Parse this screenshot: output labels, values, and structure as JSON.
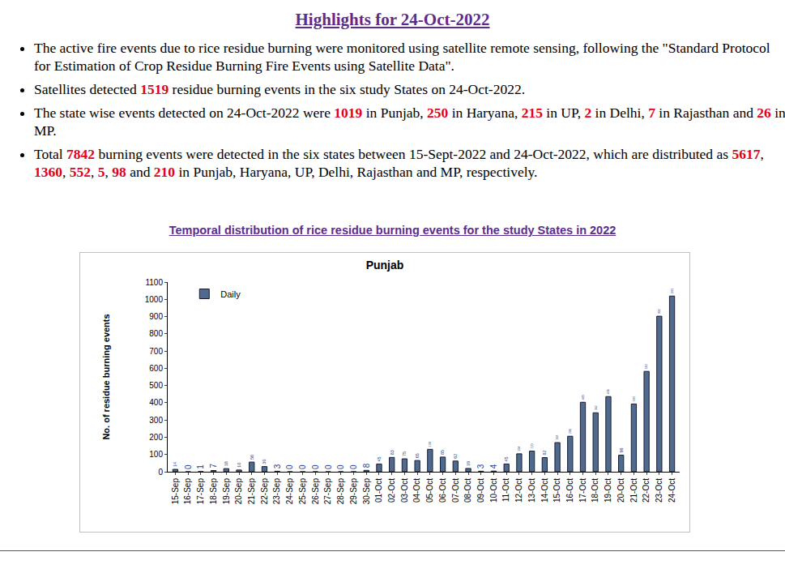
{
  "heading": "Highlights for 24-Oct-2022",
  "bullets": [
    [
      "The active fire events due to rice residue burning were monitored using satellite remote sensing, following the \"Standard Protocol for Estimation of Crop Residue Burning Fire Events using Satellite Data\"."
    ],
    [
      "Satellites detected ",
      {
        "highlight": "1519"
      },
      " residue burning events in the six study States on 24-Oct-2022."
    ],
    [
      "The state wise events detected on 24-Oct-2022 were ",
      {
        "highlight": "1019"
      },
      " in Punjab, ",
      {
        "highlight": "250"
      },
      " in Haryana, ",
      {
        "highlight": "215"
      },
      " in UP, ",
      {
        "highlight": "2"
      },
      " in Delhi, ",
      {
        "highlight": "7"
      },
      " in Rajasthan and ",
      {
        "highlight": "26"
      },
      " in MP."
    ],
    [
      "Total ",
      {
        "highlight": "7842"
      },
      " burning events were detected in the six states between 15-Sept-2022 and 24-Oct-2022, which are distributed as ",
      {
        "highlight": "5617"
      },
      ", ",
      {
        "highlight": "1360"
      },
      ", ",
      {
        "highlight": "552"
      },
      ", ",
      {
        "highlight": "5"
      },
      ", ",
      {
        "highlight": "98"
      },
      " and ",
      {
        "highlight": "210"
      },
      " in Punjab, Haryana, UP, Delhi, Rajasthan and MP, respectively."
    ]
  ],
  "chart_heading": "Temporal distribution of rice residue burning events for the study States in 2022",
  "chart_data": {
    "type": "bar",
    "title": "Punjab",
    "y_label": "No. of residue burning events",
    "categories": [
      "15-Sep",
      "16-Sep",
      "17-Sep",
      "18-Sep",
      "19-Sep",
      "20-Sep",
      "21-Sep",
      "22-Sep",
      "23-Sep",
      "24-Sep",
      "25-Sep",
      "26-Sep",
      "27-Sep",
      "28-Sep",
      "29-Sep",
      "30-Sep",
      "01-Oct",
      "02-Oct",
      "03-Oct",
      "04-Oct",
      "05-Oct",
      "06-Oct",
      "07-Oct",
      "08-Oct",
      "09-Oct",
      "10-Oct",
      "11-Oct",
      "12-Oct",
      "13-Oct",
      "14-Oct",
      "15-Oct",
      "16-Oct",
      "17-Oct",
      "18-Oct",
      "19-Oct",
      "20-Oct",
      "21-Oct",
      "22-Oct",
      "23-Oct",
      "24-Oct"
    ],
    "series": [
      {
        "name": "Daily",
        "color": "#4f6a8f",
        "values": [
          14,
          0,
          1,
          7,
          18,
          10,
          56,
          30,
          3,
          0,
          0,
          0,
          0,
          0,
          0,
          8,
          45,
          83,
          75,
          65,
          130,
          85,
          62,
          19,
          3,
          4,
          45,
          104,
          120,
          82,
          169,
          206,
          403,
          342,
          436,
          96,
          393,
          582,
          902,
          1019
        ]
      }
    ],
    "ylim": [
      0,
      1100
    ],
    "yticks": [
      0,
      100,
      200,
      300,
      400,
      500,
      600,
      700,
      800,
      900,
      1000,
      1100
    ],
    "grid": false,
    "legend": "upper left",
    "data_labels": true
  }
}
